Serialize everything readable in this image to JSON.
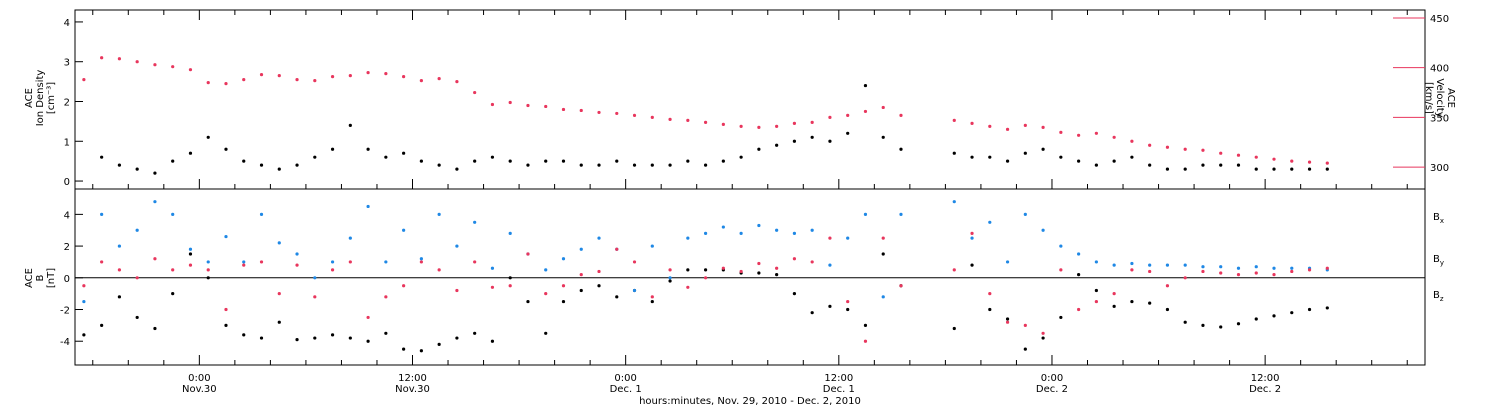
{
  "chart_data": [
    {
      "type": "scatter",
      "panel": "top",
      "ylabel_left_lines": [
        "ACE",
        "Ion Density",
        "[cm⁻³]"
      ],
      "ylabel_right_lines": [
        "ACE",
        "Velocity",
        "[km/s]"
      ],
      "y_left_range": [
        -0.2,
        4.3
      ],
      "y_left_ticks": [
        "0",
        "1",
        "2",
        "3",
        "4"
      ],
      "y_right_range": [
        278,
        458
      ],
      "y_right_ticks": [
        "300",
        "350",
        "400",
        "450"
      ],
      "series": [
        {
          "name": "",
          "axis": "left",
          "color": "#000000",
          "x": [
            -5.5,
            -4.5,
            -3.5,
            -2.5,
            -1.5,
            -0.5,
            0.5,
            1.5,
            2.5,
            3.5,
            4.5,
            5.5,
            6.5,
            7.5,
            8.5,
            9.5,
            10.5,
            11.5,
            12.5,
            13.5,
            14.5,
            15.5,
            16.5,
            17.5,
            18.5,
            19.5,
            20.5,
            21.5,
            22.5,
            23.5,
            24.5,
            25.5,
            26.5,
            27.5,
            28.5,
            29.5,
            30.5,
            31.5,
            32.5,
            33.5,
            34.5,
            35.5,
            36.5,
            37.5,
            38.5,
            39.5,
            42.5,
            43.5,
            44.5,
            45.5,
            46.5,
            47.5,
            48.5,
            49.5,
            50.5,
            51.5,
            52.5,
            53.5,
            54.5,
            55.5,
            56.5,
            57.5,
            58.5,
            59.5,
            60.5,
            61.5,
            62.5,
            63.5
          ],
          "y": [
            0.6,
            0.4,
            0.3,
            0.2,
            0.5,
            0.7,
            1.1,
            0.8,
            0.5,
            0.4,
            0.3,
            0.4,
            0.6,
            0.8,
            1.4,
            0.8,
            0.6,
            0.7,
            0.5,
            0.4,
            0.3,
            0.5,
            0.6,
            0.5,
            0.4,
            0.5,
            0.5,
            0.4,
            0.4,
            0.5,
            0.4,
            0.4,
            0.4,
            0.5,
            0.4,
            0.5,
            0.6,
            0.8,
            0.9,
            1.0,
            1.1,
            1.0,
            1.2,
            2.4,
            1.1,
            0.8,
            0.7,
            0.6,
            0.6,
            0.5,
            0.7,
            0.8,
            0.6,
            0.5,
            0.4,
            0.5,
            0.6,
            0.4,
            0.3,
            0.3,
            0.4,
            0.4,
            0.4,
            0.3,
            0.3,
            0.3,
            0.3,
            0.3
          ]
        },
        {
          "name": "",
          "axis": "right",
          "color": "#e8365d",
          "x": [
            -6.5,
            -5.5,
            -4.5,
            -3.5,
            -2.5,
            -1.5,
            -0.5,
            0.5,
            1.5,
            2.5,
            3.5,
            4.5,
            5.5,
            6.5,
            7.5,
            8.5,
            9.5,
            10.5,
            11.5,
            12.5,
            13.5,
            14.5,
            15.5,
            16.5,
            17.5,
            18.5,
            19.5,
            20.5,
            21.5,
            22.5,
            23.5,
            24.5,
            25.5,
            26.5,
            27.5,
            28.5,
            29.5,
            30.5,
            31.5,
            32.5,
            33.5,
            34.5,
            35.5,
            36.5,
            37.5,
            38.5,
            39.5,
            42.5,
            43.5,
            44.5,
            45.5,
            46.5,
            47.5,
            48.5,
            49.5,
            50.5,
            51.5,
            52.5,
            53.5,
            54.5,
            55.5,
            56.5,
            57.5,
            58.5,
            59.5,
            60.5,
            61.5,
            62.5,
            63.5
          ],
          "y": [
            388,
            410,
            409,
            406,
            403,
            401,
            398,
            385,
            384,
            388,
            393,
            392,
            388,
            387,
            391,
            392,
            395,
            394,
            391,
            387,
            389,
            386,
            375,
            363,
            365,
            362,
            361,
            358,
            357,
            355,
            354,
            352,
            350,
            348,
            347,
            345,
            343,
            341,
            340,
            341,
            344,
            345,
            350,
            352,
            356,
            360,
            352,
            347,
            344,
            341,
            338,
            342,
            340,
            335,
            332,
            334,
            330,
            326,
            322,
            320,
            318,
            317,
            314,
            312,
            310,
            308,
            306,
            305,
            304
          ]
        }
      ]
    },
    {
      "type": "scatter",
      "panel": "bottom",
      "ylabel_lines": [
        "ACE",
        "B",
        "[nT]"
      ],
      "y_range": [
        -5.5,
        5.6
      ],
      "y_ticks": [
        "-4",
        "-2",
        "0",
        "2",
        "4"
      ],
      "x_range": [
        -7,
        69
      ],
      "zero_line": true,
      "legend_position": "right",
      "series": [
        {
          "name": "Bx",
          "color": "#000000",
          "x": [
            -6.5,
            -5.5,
            -4.5,
            -3.5,
            -2.5,
            -1.5,
            -0.5,
            0.5,
            1.5,
            2.5,
            3.5,
            4.5,
            5.5,
            6.5,
            7.5,
            8.5,
            9.5,
            10.5,
            11.5,
            12.5,
            13.5,
            14.5,
            15.5,
            16.5,
            17.5,
            18.5,
            19.5,
            20.5,
            21.5,
            22.5,
            23.5,
            24.5,
            25.5,
            26.5,
            27.5,
            28.5,
            29.5,
            30.5,
            31.5,
            32.5,
            33.5,
            34.5,
            35.5,
            36.5,
            37.5,
            38.5,
            39.5,
            42.5,
            43.5,
            44.5,
            45.5,
            46.5,
            47.5,
            48.5,
            49.5,
            50.5,
            51.5,
            52.5,
            53.5,
            54.5,
            55.5,
            56.5,
            57.5,
            58.5,
            59.5,
            60.5,
            61.5,
            62.5,
            63.5
          ],
          "y": [
            -3.6,
            -3.0,
            -1.2,
            -2.5,
            -3.2,
            -1.0,
            1.5,
            0.0,
            -3.0,
            -3.6,
            -3.8,
            -2.8,
            -3.9,
            -3.8,
            -3.6,
            -3.8,
            -4.0,
            -3.5,
            -4.5,
            -4.6,
            -4.2,
            -3.8,
            -3.5,
            -4.0,
            0.0,
            -1.5,
            -3.5,
            -1.5,
            -0.8,
            -0.5,
            -1.2,
            -0.8,
            -1.5,
            -0.2,
            0.5,
            0.5,
            0.5,
            0.3,
            0.3,
            0.2,
            -1.0,
            -2.2,
            -1.8,
            -2.0,
            -3.0,
            1.5,
            -0.5,
            -3.2,
            0.8,
            -2.0,
            -2.6,
            -4.5,
            -3.8,
            -2.5,
            0.2,
            -0.8,
            -1.8,
            -1.5,
            -1.6,
            -2.0,
            -2.8,
            -3.0,
            -3.1,
            -2.9,
            -2.6,
            -2.4,
            -2.2,
            -2.0,
            -1.9
          ]
        },
        {
          "name": "By",
          "color": "#1f88e5",
          "x": [
            -6.5,
            -5.5,
            -4.5,
            -3.5,
            -2.5,
            -1.5,
            -0.5,
            0.5,
            1.5,
            2.5,
            3.5,
            4.5,
            5.5,
            6.5,
            7.5,
            8.5,
            9.5,
            10.5,
            11.5,
            12.5,
            13.5,
            14.5,
            15.5,
            16.5,
            17.5,
            18.5,
            19.5,
            20.5,
            21.5,
            22.5,
            23.5,
            24.5,
            25.5,
            26.5,
            27.5,
            28.5,
            29.5,
            30.5,
            31.5,
            32.5,
            33.5,
            34.5,
            35.5,
            36.5,
            37.5,
            38.5,
            39.5,
            42.5,
            43.5,
            44.5,
            45.5,
            46.5,
            47.5,
            48.5,
            49.5,
            50.5,
            51.5,
            52.5,
            53.5,
            54.5,
            55.5,
            56.5,
            57.5,
            58.5,
            59.5,
            60.5,
            61.5,
            62.5,
            63.5
          ],
          "y": [
            -1.5,
            4.0,
            2.0,
            3.0,
            4.8,
            4.0,
            1.8,
            1.0,
            2.6,
            1.0,
            4.0,
            2.2,
            1.5,
            0.0,
            1.0,
            2.5,
            4.5,
            1.0,
            3.0,
            1.2,
            4.0,
            2.0,
            3.5,
            0.6,
            2.8,
            1.5,
            0.5,
            1.2,
            1.8,
            2.5,
            1.8,
            -0.8,
            2.0,
            0.0,
            2.5,
            2.8,
            3.2,
            2.8,
            3.3,
            3.0,
            2.8,
            3.0,
            0.8,
            2.5,
            4.0,
            -1.2,
            4.0,
            4.8,
            2.5,
            3.5,
            1.0,
            4.0,
            3.0,
            2.0,
            1.5,
            1.0,
            0.8,
            0.9,
            0.8,
            0.8,
            0.8,
            0.7,
            0.7,
            0.6,
            0.7,
            0.6,
            0.6,
            0.6,
            0.5
          ]
        },
        {
          "name": "Bz",
          "color": "#e8365d",
          "x": [
            -6.5,
            -5.5,
            -4.5,
            -3.5,
            -2.5,
            -1.5,
            -0.5,
            0.5,
            1.5,
            2.5,
            3.5,
            4.5,
            5.5,
            6.5,
            7.5,
            8.5,
            9.5,
            10.5,
            11.5,
            12.5,
            13.5,
            14.5,
            15.5,
            16.5,
            17.5,
            18.5,
            19.5,
            20.5,
            21.5,
            22.5,
            23.5,
            24.5,
            25.5,
            26.5,
            27.5,
            28.5,
            29.5,
            30.5,
            31.5,
            32.5,
            33.5,
            34.5,
            35.5,
            36.5,
            37.5,
            38.5,
            39.5,
            42.5,
            43.5,
            44.5,
            45.5,
            46.5,
            47.5,
            48.5,
            49.5,
            50.5,
            51.5,
            52.5,
            53.5,
            54.5,
            55.5,
            56.5,
            57.5,
            58.5,
            59.5,
            60.5,
            61.5,
            62.5,
            63.5
          ],
          "y": [
            -0.5,
            1.0,
            0.5,
            0.0,
            1.2,
            0.5,
            0.8,
            0.5,
            -2.0,
            0.8,
            1.0,
            -1.0,
            0.8,
            -1.2,
            0.5,
            1.0,
            -2.5,
            -1.2,
            -0.5,
            1.0,
            0.5,
            -0.8,
            1.0,
            -0.6,
            -0.5,
            1.5,
            -1.0,
            -0.5,
            0.2,
            0.4,
            1.8,
            1.0,
            -1.2,
            0.5,
            -0.6,
            0.0,
            0.6,
            0.4,
            0.9,
            0.6,
            1.2,
            1.0,
            2.5,
            -1.5,
            -4.0,
            2.5,
            -0.5,
            0.5,
            2.8,
            -1.0,
            -2.8,
            -3.0,
            -3.5,
            0.5,
            -2.0,
            -1.5,
            -1.0,
            0.5,
            0.4,
            -0.5,
            0.0,
            0.4,
            0.3,
            0.2,
            0.3,
            0.2,
            0.4,
            0.5,
            0.6
          ]
        }
      ],
      "x_ticks": [
        {
          "hours": 0,
          "line1": "0:00",
          "line2": "Nov.30"
        },
        {
          "hours": 12,
          "line1": "12:00",
          "line2": "Nov.30"
        },
        {
          "hours": 24,
          "line1": "0:00",
          "line2": "Dec. 1"
        },
        {
          "hours": 36,
          "line1": "12:00",
          "line2": "Dec. 1"
        },
        {
          "hours": 48,
          "line1": "0:00",
          "line2": "Dec. 2"
        },
        {
          "hours": 60,
          "line1": "12:00",
          "line2": "Dec. 2"
        }
      ],
      "xlabel": "hours:minutes, Nov. 29, 2010 - Dec. 2, 2010"
    }
  ],
  "colors": {
    "black": "#000000",
    "blue": "#1f88e5",
    "red": "#e8365d"
  }
}
